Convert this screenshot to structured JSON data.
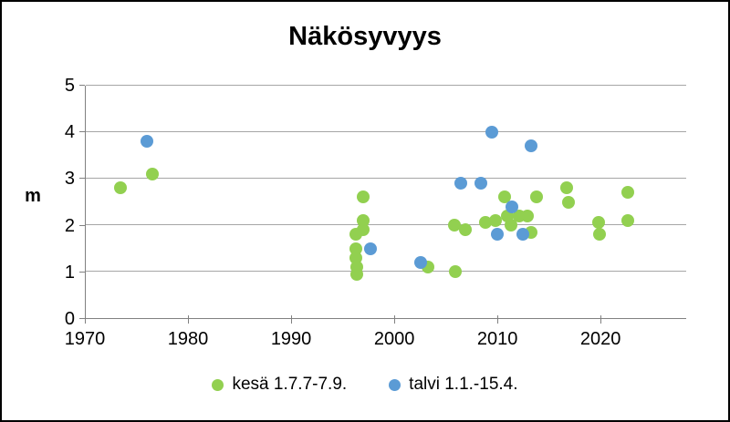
{
  "chart": {
    "title": "Näkösyvyys",
    "y_axis": {
      "title": "m",
      "min": 0,
      "max": 5,
      "ticks": [
        0,
        1,
        2,
        3,
        4,
        5
      ]
    },
    "x_axis": {
      "min": 1970,
      "max": 2028.3,
      "ticks": [
        1970,
        1980,
        1990,
        2000,
        2010,
        2020
      ]
    },
    "legend": [
      {
        "label": "kesä 1.7.7-7.9.",
        "color": "#92D050"
      },
      {
        "label": "talvi 1.1.-15.4.",
        "color": "#5B9BD5"
      }
    ],
    "colors": {
      "grid": "#A6A6A6",
      "axis": "#808080",
      "text": "#000000",
      "frame_border": "#000000",
      "background": "#FFFFFF"
    }
  },
  "chart_data": {
    "type": "scatter",
    "title": "Näkösyvyys",
    "xlabel": "",
    "ylabel": "m",
    "xlim": [
      1970,
      2028.3
    ],
    "ylim": [
      0,
      5
    ],
    "xticks": [
      1970,
      1980,
      1990,
      2000,
      2010,
      2020
    ],
    "yticks": [
      0,
      1,
      2,
      3,
      4,
      5
    ],
    "grid": true,
    "legend_position": "bottom",
    "series": [
      {
        "name": "kesä 1.7.7-7.9.",
        "color": "#92D050",
        "points": [
          [
            1973.4,
            2.8
          ],
          [
            1976.5,
            3.1
          ],
          [
            1996.2,
            1.8
          ],
          [
            1996.2,
            1.5
          ],
          [
            1996.2,
            1.3
          ],
          [
            1996.3,
            1.1
          ],
          [
            1996.3,
            0.95
          ],
          [
            1996.9,
            2.6
          ],
          [
            1996.9,
            2.1
          ],
          [
            1996.9,
            1.9
          ],
          [
            2003.2,
            1.1
          ],
          [
            2005.8,
            2.0
          ],
          [
            2005.9,
            1.0
          ],
          [
            2006.9,
            1.9
          ],
          [
            2008.8,
            2.05
          ],
          [
            2009.8,
            2.1
          ],
          [
            2010.7,
            2.6
          ],
          [
            2010.9,
            2.2
          ],
          [
            2011.3,
            2.0
          ],
          [
            2012.1,
            2.2
          ],
          [
            2012.9,
            2.2
          ],
          [
            2013.2,
            1.85
          ],
          [
            2013.8,
            2.6
          ],
          [
            2016.7,
            2.8
          ],
          [
            2016.9,
            2.5
          ],
          [
            2019.8,
            2.05
          ],
          [
            2019.9,
            1.8
          ],
          [
            2022.6,
            2.7
          ],
          [
            2022.6,
            2.1
          ]
        ]
      },
      {
        "name": "talvi 1.1.-15.4.",
        "color": "#5B9BD5",
        "points": [
          [
            1975.9,
            3.8
          ],
          [
            1997.6,
            1.5
          ],
          [
            2002.5,
            1.2
          ],
          [
            2006.4,
            2.9
          ],
          [
            2008.4,
            2.9
          ],
          [
            2009.4,
            4.0
          ],
          [
            2010.0,
            1.8
          ],
          [
            2011.4,
            2.4
          ],
          [
            2012.4,
            1.8
          ],
          [
            2013.2,
            3.7
          ]
        ]
      }
    ]
  }
}
